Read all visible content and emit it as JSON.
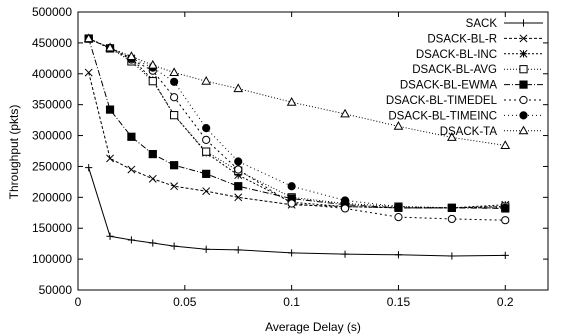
{
  "chart_data": {
    "type": "line",
    "title": "",
    "xlabel": "Average Delay (s)",
    "ylabel": "Throughput (pkts)",
    "xlim": [
      0,
      0.22
    ],
    "ylim": [
      50000,
      500000
    ],
    "xticks": [
      0,
      0.05,
      0.1,
      0.15,
      0.2
    ],
    "xtick_labels": [
      "0",
      "0.05",
      "0.1",
      "0.15",
      "0.2"
    ],
    "yticks": [
      50000,
      100000,
      150000,
      200000,
      250000,
      300000,
      350000,
      400000,
      450000,
      500000
    ],
    "ytick_labels": [
      "50000",
      "100000",
      "150000",
      "200000",
      "250000",
      "300000",
      "350000",
      "400000",
      "450000",
      "500000"
    ],
    "grid": false,
    "legend_position": "top-right",
    "series": [
      {
        "name": "SACK",
        "marker": "plus",
        "dash": "",
        "x": [
          0.005,
          0.015,
          0.025,
          0.035,
          0.045,
          0.06,
          0.075,
          0.1,
          0.125,
          0.15,
          0.175,
          0.2
        ],
        "y": [
          248000,
          137000,
          131000,
          126000,
          121000,
          116000,
          115000,
          110000,
          108000,
          107000,
          105000,
          106000
        ]
      },
      {
        "name": "DSACK-BL-R",
        "marker": "x",
        "dash": "3,2",
        "x": [
          0.005,
          0.015,
          0.025,
          0.035,
          0.045,
          0.06,
          0.075,
          0.1,
          0.125,
          0.15,
          0.175,
          0.2
        ],
        "y": [
          402000,
          263000,
          245000,
          230000,
          218000,
          210000,
          200000,
          188000,
          185000,
          183000,
          183000,
          185000
        ]
      },
      {
        "name": "DSACK-BL-INC",
        "marker": "star",
        "dash": "2,2",
        "x": [
          0.005,
          0.015,
          0.025,
          0.035,
          0.045,
          0.06,
          0.075,
          0.1,
          0.125,
          0.15,
          0.175,
          0.2
        ],
        "y": [
          457000,
          442000,
          425000,
          390000,
          333000,
          272000,
          236000,
          192000,
          185000,
          183000,
          183000,
          188000
        ]
      },
      {
        "name": "DSACK-BL-AVG",
        "marker": "square-open",
        "dash": "1,2",
        "x": [
          0.005,
          0.015,
          0.025,
          0.035,
          0.045,
          0.06,
          0.075,
          0.1,
          0.125,
          0.15,
          0.175,
          0.2
        ],
        "y": [
          457000,
          441000,
          420000,
          388000,
          333000,
          274000,
          243000,
          200000,
          190000,
          185000,
          183000,
          185000
        ]
      },
      {
        "name": "DSACK-BL-EWMA",
        "marker": "square-filled",
        "dash": "6,2,1,2",
        "x": [
          0.005,
          0.015,
          0.025,
          0.035,
          0.045,
          0.06,
          0.075,
          0.1,
          0.125,
          0.15,
          0.175,
          0.2
        ],
        "y": [
          457000,
          342000,
          298000,
          270000,
          252000,
          238000,
          218000,
          198000,
          188000,
          183000,
          183000,
          182000
        ]
      },
      {
        "name": "DSACK-BL-TIMEDEL",
        "marker": "circle-open",
        "dash": "2,3",
        "x": [
          0.005,
          0.015,
          0.025,
          0.035,
          0.045,
          0.06,
          0.075,
          0.1,
          0.125,
          0.15,
          0.175,
          0.2
        ],
        "y": [
          457000,
          441000,
          423000,
          405000,
          362000,
          293000,
          245000,
          190000,
          182000,
          168000,
          165000,
          163000
        ]
      },
      {
        "name": "DSACK-BL-TIMEINC",
        "marker": "circle-filled",
        "dash": "1,3",
        "x": [
          0.005,
          0.015,
          0.025,
          0.035,
          0.045,
          0.06,
          0.075,
          0.1,
          0.125,
          0.15,
          0.175,
          0.2
        ],
        "y": [
          457000,
          442000,
          425000,
          410000,
          387000,
          312000,
          258000,
          218000,
          195000,
          185000,
          183000,
          183000
        ]
      },
      {
        "name": "DSACK-TA",
        "marker": "triangle",
        "dash": "1,2",
        "x": [
          0.005,
          0.015,
          0.025,
          0.035,
          0.045,
          0.06,
          0.075,
          0.1,
          0.125,
          0.15,
          0.175,
          0.2
        ],
        "y": [
          457000,
          442000,
          428000,
          414000,
          402000,
          388000,
          376000,
          354000,
          335000,
          315000,
          297000,
          284000
        ]
      }
    ]
  }
}
